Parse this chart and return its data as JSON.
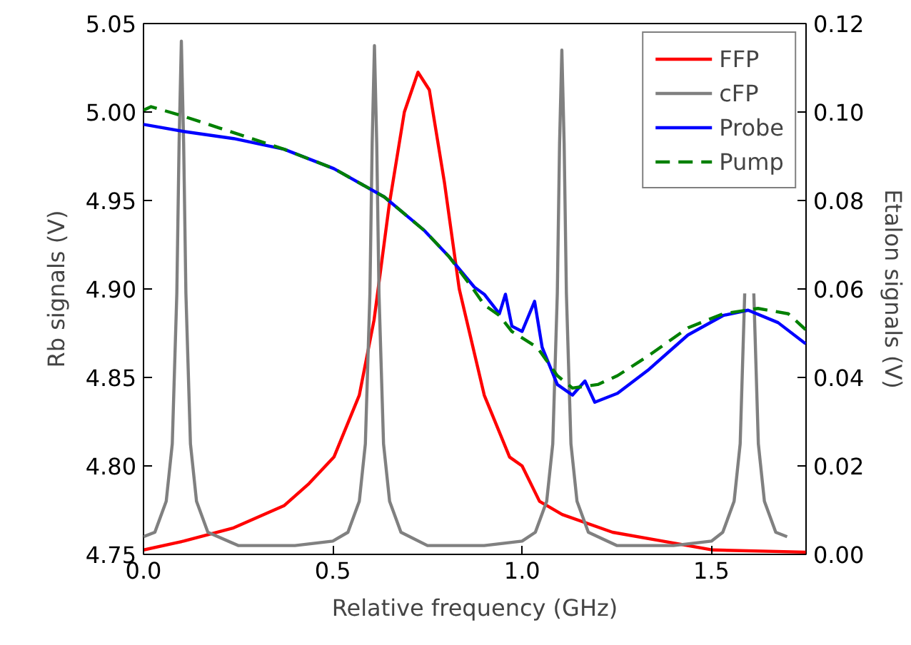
{
  "chart_data": {
    "type": "line",
    "xlabel": "Relative frequency (GHz)",
    "ylabel": "Rb signals (V)",
    "y2label": "Etalon signals (V)",
    "xlim": [
      0,
      1.75
    ],
    "xticks": [
      {
        "value": 0,
        "label": "0.0"
      },
      {
        "value": 0.5,
        "label": "0.5"
      },
      {
        "value": 1,
        "label": "1.0"
      },
      {
        "value": 1.5,
        "label": "1.5"
      }
    ],
    "ylim": [
      4.75,
      5.05
    ],
    "yticks": [
      4.75,
      {
        "value": 4.8,
        "label": "4.80"
      },
      4.85,
      {
        "value": 4.9,
        "label": "4.90"
      },
      4.95,
      {
        "value": 5.0,
        "label": "5.00"
      },
      5.05
    ],
    "y2lim": [
      0,
      0.12
    ],
    "y2ticks": [
      {
        "value": 0,
        "label": "0.00"
      },
      {
        "value": 0.02,
        "label": "0.02"
      },
      {
        "value": 0.04,
        "label": "0.04"
      },
      {
        "value": 0.06,
        "label": "0.06"
      },
      {
        "value": 0.08,
        "label": "0.08"
      },
      {
        "value": 0.1,
        "label": "0.10"
      },
      {
        "value": 0.12,
        "label": "0.12"
      }
    ],
    "grid": false,
    "legend": "top right",
    "marker": "none",
    "series": [
      {
        "name": "FFP",
        "color": "#ff0000",
        "axis": "y2",
        "x": [
          0,
          0.106,
          0.238,
          0.371,
          0.437,
          0.503,
          0.57,
          0.609,
          0.649,
          0.689,
          0.725,
          0.755,
          0.795,
          0.834,
          0.9,
          0.967,
          1.0,
          1.046,
          1.106,
          1.239,
          1.371,
          1.504,
          1.749
        ],
        "values": [
          0.001,
          0.003,
          0.006,
          0.011,
          0.016,
          0.022,
          0.036,
          0.053,
          0.079,
          0.1,
          0.109,
          0.105,
          0.084,
          0.06,
          0.036,
          0.022,
          0.02,
          0.012,
          0.009,
          0.005,
          0.003,
          0.001,
          0.0005
        ]
      },
      {
        "name": "cFP",
        "color": "#808080",
        "axis": "y2",
        "x": [
          0,
          0.03,
          0.06,
          0.076,
          0.088,
          0.094,
          0.1,
          0.106,
          0.112,
          0.124,
          0.14,
          0.17,
          0.25,
          0.4,
          0.5,
          0.54,
          0.57,
          0.586,
          0.598,
          0.604,
          0.61,
          0.616,
          0.622,
          0.634,
          0.65,
          0.68,
          0.75,
          0.9,
          1.0,
          1.035,
          1.065,
          1.081,
          1.093,
          1.099,
          1.105,
          1.111,
          1.117,
          1.129,
          1.145,
          1.175,
          1.25,
          1.4,
          1.5,
          1.53,
          1.56,
          1.576,
          1.588,
          1.594,
          1.6,
          1.606,
          1.612,
          1.624,
          1.64,
          1.67,
          1.7
        ],
        "values": [
          0.004,
          0.005,
          0.012,
          0.025,
          0.059,
          0.093,
          0.116,
          0.093,
          0.059,
          0.025,
          0.012,
          0.005,
          0.002,
          0.002,
          0.003,
          0.005,
          0.012,
          0.025,
          0.059,
          0.093,
          0.115,
          0.093,
          0.059,
          0.025,
          0.012,
          0.005,
          0.002,
          0.002,
          0.003,
          0.005,
          0.012,
          0.025,
          0.059,
          0.093,
          0.114,
          0.093,
          0.059,
          0.025,
          0.012,
          0.005,
          0.002,
          0.002,
          0.003,
          0.005,
          0.012,
          0.025,
          0.059,
          null,
          null,
          null,
          0.059,
          0.025,
          0.012,
          0.005,
          0.004
        ]
      },
      {
        "name": "Probe",
        "color": "#0000ff",
        "line_style": "solid",
        "x": [
          0,
          0.106,
          0.238,
          0.371,
          0.503,
          0.636,
          0.742,
          0.808,
          0.874,
          0.9,
          0.94,
          0.956,
          0.973,
          1.0,
          1.033,
          1.053,
          1.093,
          1.133,
          1.166,
          1.192,
          1.252,
          1.332,
          1.438,
          1.531,
          1.597,
          1.676,
          1.749
        ],
        "values": [
          4.993,
          4.989,
          4.985,
          4.979,
          4.968,
          4.952,
          4.933,
          4.918,
          4.901,
          4.897,
          4.886,
          4.897,
          4.879,
          4.876,
          4.893,
          4.867,
          4.846,
          4.84,
          4.848,
          4.836,
          4.841,
          4.854,
          4.874,
          4.885,
          4.888,
          4.881,
          4.869
        ]
      },
      {
        "name": "Pump",
        "color": "#008000",
        "line_style": "dashed",
        "x": [
          0,
          0.02,
          0.1,
          0.2,
          0.371,
          0.503,
          0.636,
          0.742,
          0.808,
          0.874,
          0.9,
          0.94,
          0.973,
          1.04,
          1.093,
          1.133,
          1.2,
          1.252,
          1.332,
          1.438,
          1.531,
          1.623,
          1.703,
          1.749
        ],
        "values": [
          5.001,
          5.003,
          4.998,
          4.991,
          4.979,
          4.968,
          4.952,
          4.933,
          4.918,
          4.899,
          4.891,
          4.885,
          4.876,
          4.867,
          4.851,
          4.844,
          4.846,
          4.851,
          4.862,
          4.878,
          4.886,
          4.889,
          4.886,
          4.877
        ]
      }
    ]
  }
}
